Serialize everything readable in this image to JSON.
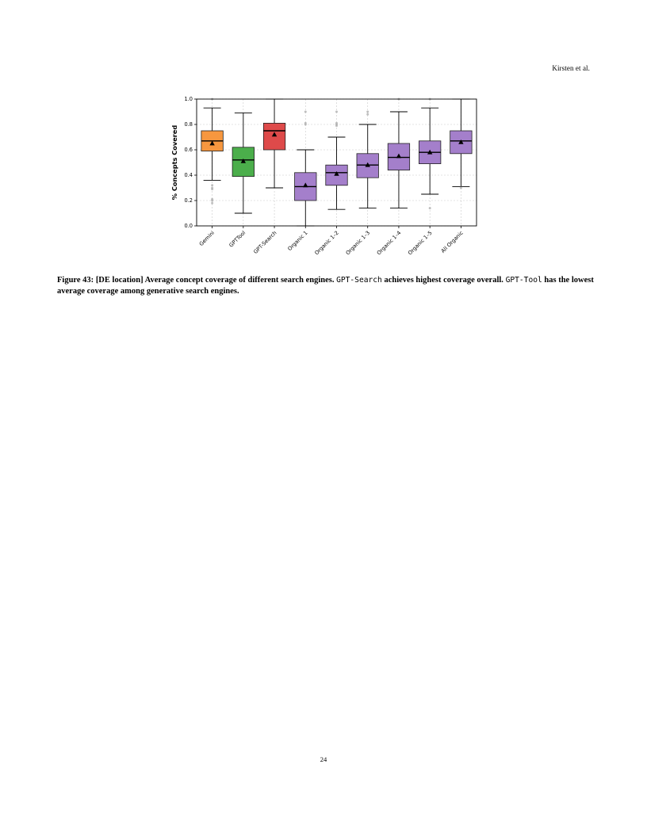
{
  "header": {
    "running_head": "Kirsten et al."
  },
  "figure": {
    "caption": {
      "label": "Figure 43:",
      "title": " [DE location] Average concept coverage of different search engines.",
      "code_1": "GPT-Search",
      "text_1": " achieves highest coverage overall.",
      "code_2": "GPT-Tool",
      "text_2": " has the lowest average coverage among generative search engines."
    }
  },
  "chart_data": {
    "type": "box",
    "ylabel": "% Concepts Covered",
    "xlabel": "",
    "ylim": [
      0.0,
      1.0
    ],
    "yticks": [
      0.0,
      0.2,
      0.4,
      0.6,
      0.8,
      1.0
    ],
    "ytick_labels": [
      "0.0",
      "0.2",
      "0.4",
      "0.6",
      "0.8",
      "1.0"
    ],
    "grid": true,
    "legend": false,
    "colors": {
      "Gemini": "#f7973f",
      "GPTTool": "#4bae4b",
      "GPT-Search": "#de4a4a",
      "organic": "#a47fcb",
      "median": "#000000",
      "mean_marker": "#000000",
      "outlier": "#b0b0b0"
    },
    "categories": [
      "Gemini",
      "GPTTool",
      "GPT-Search",
      "Organic 1",
      "Organic 1–2",
      "Organic 1–3",
      "Organic 1–4",
      "Organic 1–5",
      "All Organic"
    ],
    "boxes": [
      {
        "name": "Gemini",
        "whisker_low": 0.36,
        "q1": 0.59,
        "median": 0.67,
        "q3": 0.75,
        "whisker_high": 0.93,
        "mean": 0.65,
        "outliers": [
          1.0,
          0.32,
          0.3,
          0.29,
          0.21,
          0.2,
          0.18
        ]
      },
      {
        "name": "GPTTool",
        "whisker_low": 0.1,
        "q1": 0.39,
        "median": 0.52,
        "q3": 0.62,
        "whisker_high": 0.89,
        "mean": 0.51,
        "outliers": []
      },
      {
        "name": "GPT-Search",
        "whisker_low": 0.3,
        "q1": 0.6,
        "median": 0.75,
        "q3": 0.81,
        "whisker_high": 1.0,
        "mean": 0.72,
        "outliers": []
      },
      {
        "name": "Organic 1",
        "whisker_low": 0.0,
        "q1": 0.2,
        "median": 0.31,
        "q3": 0.42,
        "whisker_high": 0.6,
        "mean": 0.32,
        "outliers": [
          0.9,
          0.81,
          0.8
        ]
      },
      {
        "name": "Organic 1–2",
        "whisker_low": 0.13,
        "q1": 0.32,
        "median": 0.42,
        "q3": 0.48,
        "whisker_high": 0.7,
        "mean": 0.41,
        "outliers": [
          0.9,
          0.81,
          0.8,
          0.79
        ]
      },
      {
        "name": "Organic 1–3",
        "whisker_low": 0.14,
        "q1": 0.38,
        "median": 0.48,
        "q3": 0.57,
        "whisker_high": 0.8,
        "mean": 0.48,
        "outliers": [
          0.9,
          0.88
        ]
      },
      {
        "name": "Organic 1–4",
        "whisker_low": 0.14,
        "q1": 0.44,
        "median": 0.54,
        "q3": 0.65,
        "whisker_high": 0.9,
        "mean": 0.55,
        "outliers": [
          1.0
        ]
      },
      {
        "name": "Organic 1–5",
        "whisker_low": 0.25,
        "q1": 0.49,
        "median": 0.58,
        "q3": 0.67,
        "whisker_high": 0.93,
        "mean": 0.58,
        "outliers": [
          1.0,
          0.14
        ]
      },
      {
        "name": "All Organic",
        "whisker_low": 0.31,
        "q1": 0.57,
        "median": 0.67,
        "q3": 0.75,
        "whisker_high": 1.0,
        "mean": 0.66,
        "outliers": [
          0.3
        ]
      }
    ]
  },
  "footer": {
    "page_number": "24"
  }
}
